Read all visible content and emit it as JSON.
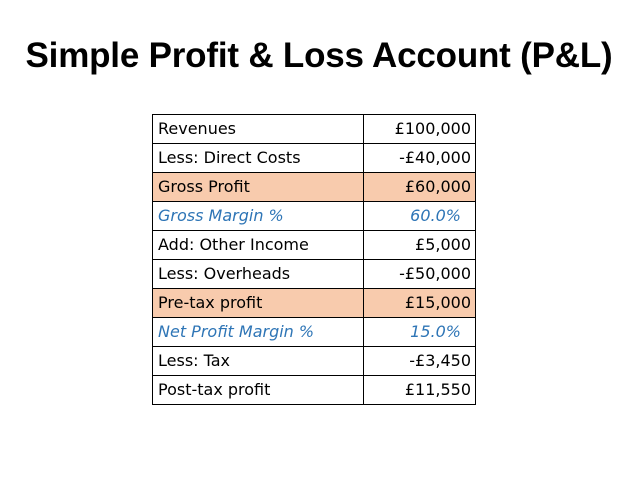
{
  "title": "Simple Profit & Loss Account (P&L)",
  "colors": {
    "highlight_fill": "#f8cbad",
    "margin_text": "#2e75b6"
  },
  "rows": [
    {
      "label": "Revenues",
      "value": "£100,000",
      "style": "normal"
    },
    {
      "label": "Less: Direct Costs",
      "value": "-£40,000",
      "style": "normal"
    },
    {
      "label": "Gross Profit",
      "value": "£60,000",
      "style": "highlight"
    },
    {
      "label": "Gross Margin %",
      "value": "60.0%",
      "style": "margin"
    },
    {
      "label": "Add: Other Income",
      "value": "£5,000",
      "style": "normal"
    },
    {
      "label": "Less: Overheads",
      "value": "-£50,000",
      "style": "normal"
    },
    {
      "label": "Pre-tax profit",
      "value": "£15,000",
      "style": "highlight"
    },
    {
      "label": "Net Profit Margin %",
      "value": "15.0%",
      "style": "margin"
    },
    {
      "label": "Less: Tax",
      "value": "-£3,450",
      "style": "normal"
    },
    {
      "label": "Post-tax profit",
      "value": "£11,550",
      "style": "normal"
    }
  ]
}
